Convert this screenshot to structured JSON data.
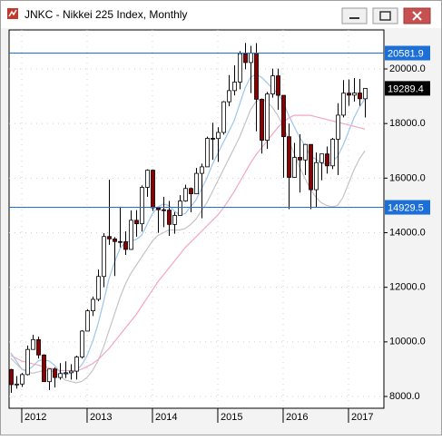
{
  "chart_data": {
    "type": "candlestick",
    "title": "JNKC - Nikkei 225 Index, Monthly",
    "x": [
      2011.833,
      2011.917,
      2012,
      2012.083,
      2012.167,
      2012.25,
      2012.333,
      2012.417,
      2012.5,
      2012.583,
      2012.667,
      2012.75,
      2012.833,
      2012.917,
      2013,
      2013.083,
      2013.167,
      2013.25,
      2013.333,
      2013.417,
      2013.5,
      2013.583,
      2013.667,
      2013.75,
      2013.833,
      2013.917,
      2014,
      2014.083,
      2014.167,
      2014.25,
      2014.333,
      2014.417,
      2014.5,
      2014.583,
      2014.667,
      2014.75,
      2014.833,
      2014.917,
      2015,
      2015.083,
      2015.167,
      2015.25,
      2015.333,
      2015.417,
      2015.5,
      2015.583,
      2015.667,
      2015.75,
      2015.833,
      2015.917,
      2016,
      2016.083,
      2016.167,
      2016.25,
      2016.333,
      2016.417,
      2016.5,
      2016.583,
      2016.667,
      2016.75,
      2016.833,
      2016.917,
      2017,
      2017.083,
      2017.167,
      2017.25
    ],
    "open": [
      8988,
      8434,
      8455,
      8802,
      9723,
      10083,
      9520,
      8542,
      9006,
      8695,
      8839,
      8870,
      8928,
      9446,
      10395,
      11138,
      11559,
      12397,
      13860,
      13774,
      13677,
      13668,
      13388,
      14455,
      14327,
      15662,
      16291,
      14914,
      14841,
      14828,
      14304,
      14632,
      15162,
      15621,
      15425,
      16174,
      16414,
      17460,
      17451,
      17674,
      18798,
      19207,
      19520,
      20563,
      20236,
      20585,
      18890,
      17388,
      19083,
      19747,
      19034,
      17518,
      16027,
      16759,
      16666,
      17235,
      15576,
      16569,
      16887,
      16450,
      17425,
      18308,
      19114,
      19041,
      19119,
      18909
    ],
    "high": [
      9010,
      8750,
      8860,
      9866,
      10255,
      10190,
      9545,
      9006,
      9070,
      9222,
      9288,
      9179,
      9490,
      10433,
      11194,
      11662,
      12650,
      13983,
      15942,
      13839,
      14953,
      14050,
      14817,
      14828,
      15735,
      16320,
      16321,
      14935,
      15312,
      15165,
      14758,
      15376,
      15759,
      15659,
      16374,
      16533,
      17520,
      18030,
      17865,
      18826,
      19778,
      20133,
      20655,
      20952,
      20850,
      20947,
      18914,
      19160,
      20012,
      20013,
      19034,
      18000,
      17291,
      17613,
      17251,
      17235,
      16938,
      16887,
      17159,
      17473,
      18746,
      19592,
      19615,
      19668,
      19633,
      19290
    ],
    "low": [
      8135,
      8286,
      8349,
      8774,
      9720,
      9388,
      8542,
      8238,
      8328,
      8616,
      8675,
      8619,
      8619,
      9388,
      10398,
      10945,
      11485,
      12003,
      13555,
      12415,
      13466,
      13188,
      13373,
      13853,
      14040,
      15319,
      14800,
      13995,
      14203,
      13885,
      13964,
      14736,
      15136,
      14753,
      15425,
      14529,
      16413,
      16672,
      16592,
      17593,
      18633,
      19034,
      19258,
      19990,
      19115,
      17714,
      16901,
      17070,
      18950,
      18499,
      16017,
      14865,
      16009,
      15471,
      16111,
      14864,
      14952,
      15924,
      16164,
      16330,
      16112,
      18226,
      18650,
      18805,
      18650,
      18224
    ],
    "close": [
      8434,
      8455,
      8802,
      9723,
      10083,
      9520,
      8542,
      9006,
      8695,
      8839,
      8870,
      8928,
      9446,
      10395,
      11138,
      11559,
      12397,
      13860,
      13774,
      13677,
      13668,
      13388,
      14455,
      14327,
      15662,
      16291,
      14914,
      14841,
      14828,
      14304,
      14632,
      15162,
      15621,
      15425,
      16174,
      16414,
      17460,
      17451,
      17674,
      18798,
      19207,
      19520,
      20563,
      20236,
      20585,
      18890,
      17388,
      19083,
      19747,
      19034,
      17518,
      16027,
      16759,
      16666,
      17235,
      15576,
      16569,
      16887,
      16450,
      17425,
      18308,
      19114,
      19041,
      19119,
      18909,
      19289.4
    ],
    "up_color": "#ffffff",
    "down_color": "#8b0000",
    "overlays": [
      {
        "color": "#9cc6ee",
        "values": [
          9600,
          9300,
          9000,
          8950,
          9100,
          9300,
          9350,
          9300,
          9150,
          8900,
          8800,
          8850,
          8950,
          9150,
          9500,
          10000,
          10650,
          11450,
          12300,
          12900,
          13400,
          13650,
          13700,
          13750,
          13900,
          14300,
          14700,
          14950,
          15050,
          15000,
          14800,
          14650,
          14700,
          14950,
          15200,
          15600,
          16000,
          16500,
          16900,
          17300,
          17700,
          18100,
          18700,
          19300,
          19700,
          19800,
          19700,
          19500,
          19300,
          19100,
          18800,
          18300,
          17900,
          17500,
          17200,
          16800,
          16700,
          16550,
          16500,
          16600,
          16800,
          17200,
          17700,
          18200,
          18600,
          18900
        ]
      },
      {
        "color": "#c4c4c4",
        "values": [
          9400,
          9200,
          9000,
          8900,
          8850,
          8900,
          8950,
          8950,
          8900,
          8750,
          8600,
          8550,
          8500,
          8550,
          8700,
          8950,
          9300,
          9800,
          10400,
          11000,
          11600,
          12100,
          12500,
          12800,
          13100,
          13400,
          13700,
          13900,
          14000,
          14100,
          14100,
          14100,
          14150,
          14300,
          14500,
          14800,
          15100,
          15500,
          15900,
          16300,
          16700,
          17100,
          17500,
          18000,
          18500,
          18800,
          18900,
          18800,
          18600,
          18300,
          17900,
          17400,
          16900,
          16400,
          16000,
          15600,
          15300,
          15100,
          15000,
          14950,
          15000,
          15300,
          15800,
          16300,
          16700,
          17000
        ]
      },
      {
        "color": "#f2a6c4",
        "values": [
          9500,
          9400,
          9300,
          9250,
          9200,
          9150,
          9100,
          9050,
          9000,
          8950,
          8950,
          8950,
          8950,
          9000,
          9100,
          9200,
          9350,
          9550,
          9750,
          10000,
          10250,
          10500,
          10750,
          11000,
          11300,
          11600,
          11900,
          12200,
          12450,
          12700,
          12950,
          13200,
          13450,
          13650,
          13850,
          14050,
          14250,
          14450,
          14650,
          14900,
          15200,
          15500,
          15850,
          16200,
          16550,
          16850,
          17100,
          17350,
          17600,
          17850,
          18050,
          18200,
          18300,
          18300,
          18300,
          18300,
          18250,
          18200,
          18150,
          18100,
          18050,
          18000,
          17950,
          17900,
          17850,
          17800
        ]
      }
    ],
    "hlines": [
      {
        "value": 20581.9,
        "color": "#1c6fd6"
      },
      {
        "value": 14929.5,
        "color": "#1c6fd6"
      }
    ],
    "xlim": [
      2011.806,
      2017.542
    ],
    "xticks": [
      2012,
      2013,
      2014,
      2015,
      2016,
      2017
    ],
    "ylim": [
      7568,
      21430
    ],
    "yticks": [
      {
        "value": 8000,
        "label": "8000.0"
      },
      {
        "value": 10000,
        "label": "10000.0"
      },
      {
        "value": 12000,
        "label": "12000.0"
      },
      {
        "value": 14000,
        "label": "14000.0"
      },
      {
        "value": 16000,
        "label": "16000.0"
      },
      {
        "value": 18000,
        "label": "18000.0"
      },
      {
        "value": 20000,
        "label": "20000.0"
      }
    ],
    "grid": true
  }
}
